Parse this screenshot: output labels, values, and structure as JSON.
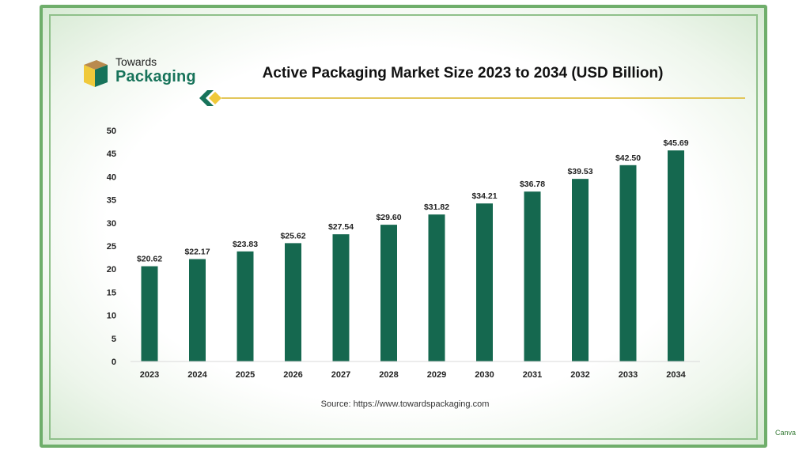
{
  "brand": {
    "line1": "Towards",
    "line2": "Packaging",
    "primary_color": "#17735a",
    "accent_color": "#f0c93a"
  },
  "source": "Source: https://www.towardspackaging.com",
  "watermark": "Canva",
  "chart_data": {
    "type": "bar",
    "title": "Active Packaging Market Size 2023 to 2034 (USD Billion)",
    "xlabel": "",
    "ylabel": "",
    "categories": [
      "2023",
      "2024",
      "2025",
      "2026",
      "2027",
      "2028",
      "2029",
      "2030",
      "2031",
      "2032",
      "2033",
      "2034"
    ],
    "values": [
      20.62,
      22.17,
      23.83,
      25.62,
      27.54,
      29.6,
      31.82,
      34.21,
      36.78,
      39.53,
      42.5,
      45.69
    ],
    "data_labels": [
      "$20.62",
      "$22.17",
      "$23.83",
      "$25.62",
      "$27.54",
      "$29.60",
      "$31.82",
      "$34.21",
      "$36.78",
      "$39.53",
      "$42.50",
      "$45.69"
    ],
    "ylim": [
      0,
      50
    ],
    "yticks": [
      0,
      5,
      10,
      15,
      20,
      25,
      30,
      35,
      40,
      45,
      50
    ],
    "grid": false,
    "legend": "none",
    "bar_color": "#15684f"
  }
}
